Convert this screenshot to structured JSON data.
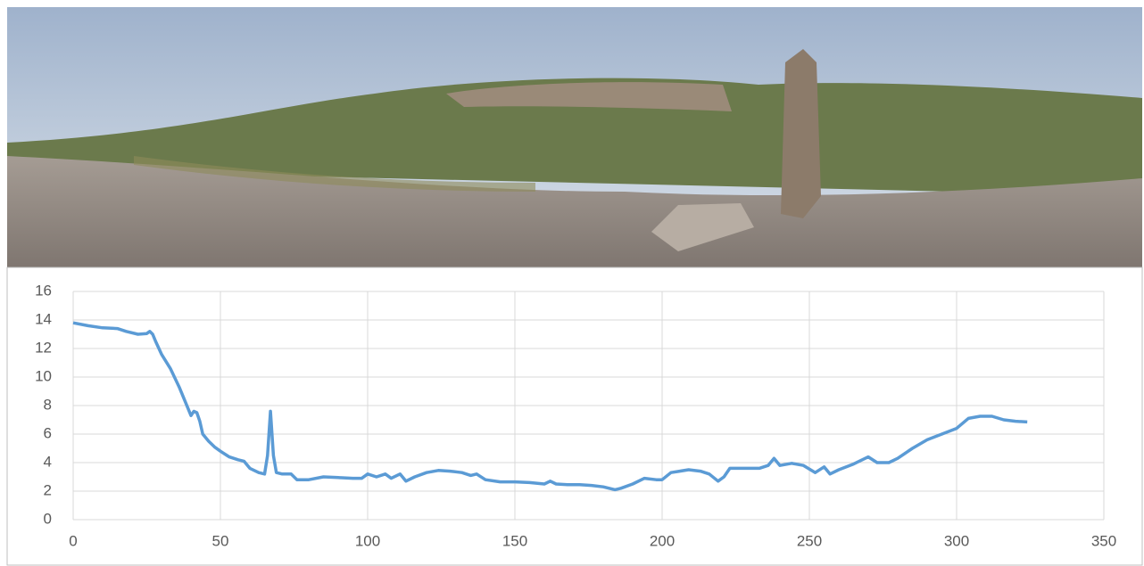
{
  "chart_data": {
    "type": "line",
    "x": [
      0,
      5,
      10,
      15,
      18,
      22,
      25,
      26,
      27,
      28,
      30,
      33,
      36,
      38,
      40,
      41,
      42,
      43,
      44,
      46,
      48,
      50,
      53,
      56,
      58,
      60,
      63,
      65,
      66,
      67,
      68,
      69,
      71,
      74,
      76,
      80,
      85,
      90,
      95,
      98,
      100,
      103,
      106,
      108,
      111,
      113,
      116,
      120,
      124,
      128,
      132,
      135,
      137,
      140,
      145,
      150,
      155,
      160,
      162,
      164,
      168,
      172,
      176,
      180,
      184,
      186,
      190,
      194,
      198,
      200,
      203,
      206,
      209,
      213,
      216,
      219,
      221,
      223,
      228,
      233,
      236,
      238,
      240,
      244,
      248,
      252,
      255,
      257,
      260,
      265,
      270,
      273,
      277,
      280,
      285,
      290,
      295,
      300,
      304,
      308,
      312,
      316,
      320,
      324
    ],
    "series": [
      {
        "color": "#5b9bd5",
        "values": [
          13.8,
          13.6,
          13.45,
          13.4,
          13.2,
          13.0,
          13.05,
          13.2,
          13.0,
          12.5,
          11.6,
          10.6,
          9.3,
          8.3,
          7.3,
          7.6,
          7.5,
          6.9,
          6.0,
          5.5,
          5.1,
          4.8,
          4.4,
          4.2,
          4.1,
          3.6,
          3.3,
          3.2,
          4.5,
          7.6,
          4.5,
          3.3,
          3.2,
          3.2,
          2.8,
          2.8,
          3.0,
          2.95,
          2.9,
          2.9,
          3.2,
          3.0,
          3.2,
          2.9,
          3.2,
          2.7,
          3.0,
          3.3,
          3.45,
          3.4,
          3.3,
          3.1,
          3.2,
          2.8,
          2.65,
          2.65,
          2.6,
          2.5,
          2.7,
          2.5,
          2.45,
          2.45,
          2.4,
          2.3,
          2.1,
          2.2,
          2.5,
          2.9,
          2.8,
          2.8,
          3.3,
          3.4,
          3.5,
          3.4,
          3.2,
          2.7,
          3.0,
          3.6,
          3.6,
          3.6,
          3.8,
          4.3,
          3.8,
          3.95,
          3.8,
          3.3,
          3.7,
          3.2,
          3.5,
          3.9,
          4.4,
          4.0,
          4.0,
          4.3,
          5.0,
          5.6,
          6.0,
          6.4,
          7.1,
          7.25,
          7.25,
          7.0,
          6.9,
          6.85
        ]
      }
    ],
    "xlim": [
      0,
      350
    ],
    "xticks": [
      0,
      50,
      100,
      150,
      200,
      250,
      300,
      350
    ],
    "ylim": [
      0,
      16
    ],
    "yticks": [
      0,
      2,
      4,
      6,
      8,
      10,
      12,
      14,
      16
    ],
    "grid": true
  }
}
